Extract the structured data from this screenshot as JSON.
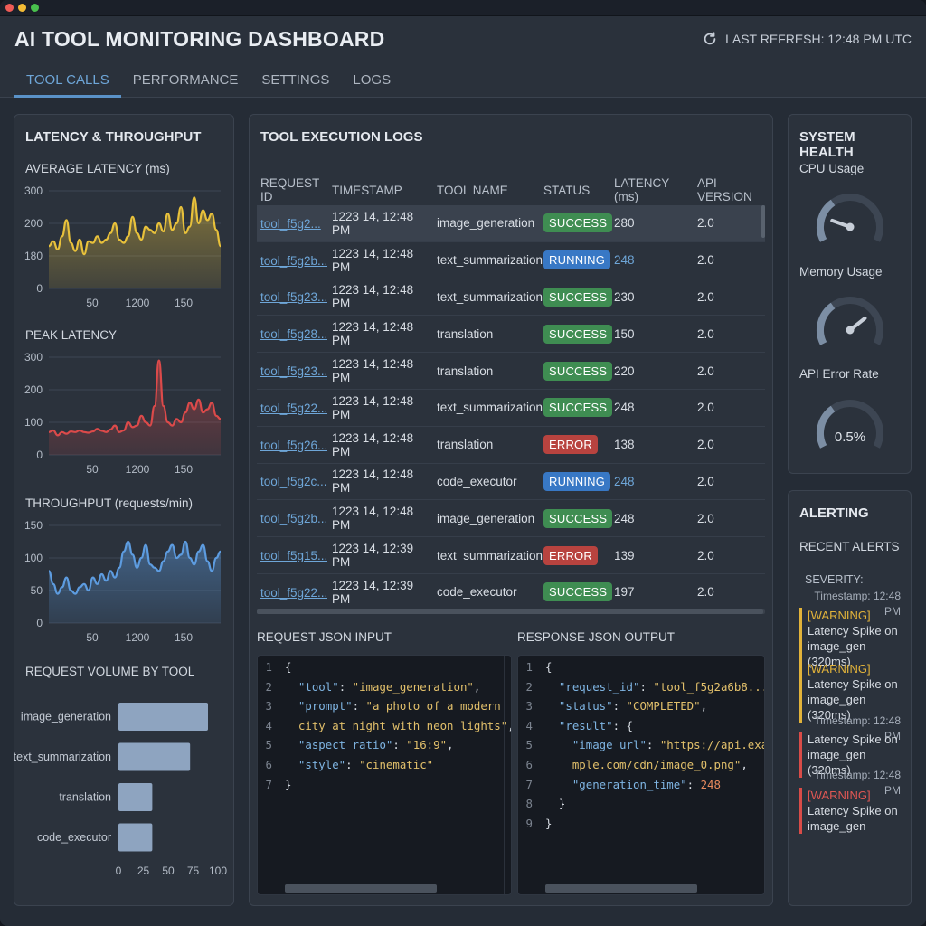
{
  "app": {
    "title": "AI TOOL MONITORING DASHBOARD",
    "refresh_label": "LAST REFRESH: 12:48 PM UTC",
    "icons": {
      "refresh": "refresh-icon"
    }
  },
  "tabs": [
    {
      "label": "TOOL CALLS",
      "active": true
    },
    {
      "label": "PERFORMANCE",
      "active": false
    },
    {
      "label": "SETTINGS",
      "active": false
    },
    {
      "label": "LOGS",
      "active": false
    }
  ],
  "left_panel": {
    "title": "LATENCY & THROUGHPUT",
    "charts": [
      {
        "label": "AVERAGE LATENCY (ms)",
        "y_ticks": [
          "300",
          "200",
          "180",
          "0"
        ],
        "x_ticks": [
          "50",
          "1200",
          "150"
        ],
        "color": "#e8c13b"
      },
      {
        "label": "PEAK LATENCY",
        "y_ticks": [
          "300",
          "200",
          "100",
          "0"
        ],
        "x_ticks": [
          "50",
          "1200",
          "150"
        ],
        "color": "#dc4a4a"
      },
      {
        "label": "THROUGHPUT (requests/min)",
        "y_ticks": [
          "150",
          "100",
          "50",
          "0"
        ],
        "x_ticks": [
          "50",
          "1200",
          "150"
        ],
        "color": "#5d9ce0"
      }
    ],
    "volume": {
      "label": "REQUEST VOLUME BY TOOL",
      "bars": [
        {
          "name": "image_generation",
          "value": 90
        },
        {
          "name": "text_summarization",
          "value": 72
        },
        {
          "name": "translation",
          "value": 34
        },
        {
          "name": "code_executor",
          "value": 34
        }
      ],
      "x_ticks": [
        "0",
        "25",
        "50",
        "75",
        "100"
      ],
      "bar_color": "#8ea4c0"
    }
  },
  "chart_data": [
    {
      "type": "area",
      "title": "AVERAGE LATENCY (ms)",
      "ylim": [
        0,
        300
      ],
      "series": [
        {
          "values": [
            130,
            145,
            120,
            160,
            210,
            140,
            115,
            150,
            105,
            145,
            140,
            160,
            140,
            150,
            170,
            200,
            150,
            140,
            160,
            220,
            170,
            150,
            190,
            180,
            170,
            200,
            175,
            230,
            180,
            200,
            250,
            170,
            190,
            280,
            200,
            240,
            210,
            230,
            180,
            130
          ]
        }
      ]
    },
    {
      "type": "area",
      "title": "PEAK LATENCY",
      "ylim": [
        0,
        300
      ],
      "series": [
        {
          "values": [
            70,
            75,
            60,
            70,
            65,
            72,
            70,
            75,
            70,
            68,
            72,
            80,
            74,
            70,
            78,
            90,
            70,
            75,
            100,
            85,
            90,
            120,
            100,
            90,
            150,
            290,
            150,
            100,
            90,
            110,
            100,
            130,
            160,
            140,
            170,
            130,
            140,
            160,
            120,
            110
          ]
        }
      ]
    },
    {
      "type": "area",
      "title": "THROUGHPUT (requests/min)",
      "ylim": [
        0,
        150
      ],
      "series": [
        {
          "values": [
            80,
            60,
            45,
            55,
            70,
            50,
            45,
            55,
            60,
            50,
            70,
            60,
            75,
            65,
            80,
            70,
            85,
            110,
            125,
            105,
            85,
            100,
            120,
            90,
            85,
            80,
            95,
            110,
            120,
            100,
            105,
            125,
            100,
            90,
            110,
            120,
            95,
            80,
            100,
            110
          ]
        }
      ]
    },
    {
      "type": "bar",
      "title": "REQUEST VOLUME BY TOOL",
      "categories": [
        "image_generation",
        "text_summarization",
        "translation",
        "code_executor"
      ],
      "values": [
        90,
        72,
        34,
        34
      ],
      "xlim": [
        0,
        100
      ]
    }
  ],
  "logs": {
    "title": "TOOL EXECUTION LOGS",
    "columns": [
      "REQUEST ID",
      "TIMESTAMP",
      "TOOL NAME",
      "STATUS",
      "LATENCY (ms)",
      "API VERSION"
    ],
    "rows": [
      {
        "id": "tool_f5g2...",
        "timestamp": "1223 14, 12:48 PM",
        "tool": "image_generation",
        "status": "SUCCESS",
        "latency": "280",
        "api": "2.0"
      },
      {
        "id": "tool_f5g2b...",
        "timestamp": "1223 14, 12:48 PM",
        "tool": "text_summarization",
        "status": "RUNNING",
        "latency": "248",
        "api": "2.0"
      },
      {
        "id": "tool_f5g23...",
        "timestamp": "1223 14, 12:48 PM",
        "tool": "text_summarization",
        "status": "SUCCESS",
        "latency": "230",
        "api": "2.0"
      },
      {
        "id": "tool_f5g28...",
        "timestamp": "1223 14, 12:48 PM",
        "tool": "translation",
        "status": "SUCCESS",
        "latency": "150",
        "api": "2.0"
      },
      {
        "id": "tool_f5g23...",
        "timestamp": "1223 14, 12:48 PM",
        "tool": "translation",
        "status": "SUCCESS",
        "latency": "220",
        "api": "2.0"
      },
      {
        "id": "tool_f5g22...",
        "timestamp": "1223 14, 12:48 PM",
        "tool": "text_summarization",
        "status": "SUCCESS",
        "latency": "248",
        "api": "2.0"
      },
      {
        "id": "tool_f5g26...",
        "timestamp": "1223 14, 12:48 PM",
        "tool": "translation",
        "status": "ERROR",
        "latency": "138",
        "api": "2.0"
      },
      {
        "id": "tool_f5g2c...",
        "timestamp": "1223 14, 12:48 PM",
        "tool": "code_executor",
        "status": "RUNNING",
        "latency": "248",
        "api": "2.0"
      },
      {
        "id": "tool_f5g2b...",
        "timestamp": "1223 14, 12:48 PM",
        "tool": "image_generation",
        "status": "SUCCESS",
        "latency": "248",
        "api": "2.0"
      },
      {
        "id": "tool_f5g15...",
        "timestamp": "1223 14, 12:39 PM",
        "tool": "text_summarization",
        "status": "ERROR",
        "latency": "139",
        "api": "2.0"
      },
      {
        "id": "tool_f5g22...",
        "timestamp": "1223 14, 12:39 PM",
        "tool": "code_executor",
        "status": "SUCCESS",
        "latency": "197",
        "api": "2.0"
      }
    ]
  },
  "request_json": {
    "label": "REQUEST JSON INPUT",
    "lines": [
      [
        [
          "pun",
          "{"
        ]
      ],
      [
        [
          "pun",
          "  "
        ],
        [
          "key",
          "\"tool\""
        ],
        [
          "pun",
          ": "
        ],
        [
          "str",
          "\"image_generation\""
        ],
        [
          "pun",
          ","
        ]
      ],
      [
        [
          "pun",
          "  "
        ],
        [
          "key",
          "\"prompt\""
        ],
        [
          "pun",
          ": "
        ],
        [
          "str",
          "\"a photo of a modern"
        ]
      ],
      [
        [
          "str",
          "  city at night with neon lights\""
        ],
        [
          "pun",
          ","
        ]
      ],
      [
        [
          "pun",
          "  "
        ],
        [
          "key",
          "\"aspect_ratio\""
        ],
        [
          "pun",
          ": "
        ],
        [
          "str",
          "\"16:9\""
        ],
        [
          "pun",
          ","
        ]
      ],
      [
        [
          "pun",
          "  "
        ],
        [
          "key",
          "\"style\""
        ],
        [
          "pun",
          ": "
        ],
        [
          "str",
          "\"cinematic\""
        ]
      ],
      [
        [
          "pun",
          "}"
        ]
      ]
    ]
  },
  "response_json": {
    "label": "RESPONSE JSON OUTPUT",
    "lines": [
      [
        [
          "pun",
          "{"
        ]
      ],
      [
        [
          "pun",
          "  "
        ],
        [
          "key",
          "\"request_id\""
        ],
        [
          "pun",
          ": "
        ],
        [
          "str",
          "\"tool_f5g2a6b8...\""
        ],
        [
          "pun",
          ","
        ]
      ],
      [
        [
          "pun",
          "  "
        ],
        [
          "key",
          "\"status\""
        ],
        [
          "pun",
          ": "
        ],
        [
          "str",
          "\"COMPLETED\""
        ],
        [
          "pun",
          ","
        ]
      ],
      [
        [
          "pun",
          "  "
        ],
        [
          "key",
          "\"result\""
        ],
        [
          "pun",
          ": {"
        ]
      ],
      [
        [
          "pun",
          "    "
        ],
        [
          "key",
          "\"image_url\""
        ],
        [
          "pun",
          ": "
        ],
        [
          "str",
          "\"https://api.exa"
        ]
      ],
      [
        [
          "str",
          "    mple.com/cdn/image_0.png\""
        ],
        [
          "pun",
          ","
        ]
      ],
      [
        [
          "pun",
          "    "
        ],
        [
          "key",
          "\"generation_time\""
        ],
        [
          "pun",
          ": "
        ],
        [
          "num",
          "248"
        ]
      ],
      [
        [
          "pun",
          "  }"
        ]
      ],
      [
        [
          "pun",
          "}"
        ]
      ]
    ]
  },
  "health": {
    "title": "SYSTEM HEALTH",
    "gauges": [
      {
        "label": "CPU Usage",
        "value_fraction": 0.2,
        "text": ""
      },
      {
        "label": "Memory Usage",
        "value_fraction": 0.72,
        "text": ""
      },
      {
        "label": "API Error Rate",
        "value_fraction": 0.0,
        "text": "0.5%"
      }
    ]
  },
  "alerting": {
    "title": "ALERTING",
    "subtitle": "RECENT ALERTS",
    "severity_label": "SEVERITY:",
    "items": [
      {
        "timestamp": "Timestamp: 12:48 PM",
        "tag": "[WARNING]",
        "text": " Latency Spike on image_gen (320ms)",
        "kind": "warning"
      },
      {
        "timestamp": "",
        "tag": "[WARNING]",
        "text": " Latency Spike on image_gen (320ms)",
        "kind": "warning"
      },
      {
        "timestamp": "Timestamp: 12:48 PM",
        "tag": "",
        "text": "Latency Spike on image_gen (320ms)",
        "kind": "error"
      },
      {
        "timestamp": "Timestamp: 12:48 PM",
        "tag": "[WARNING]",
        "text": " Latency Spike on image_gen",
        "kind": "error"
      }
    ]
  }
}
